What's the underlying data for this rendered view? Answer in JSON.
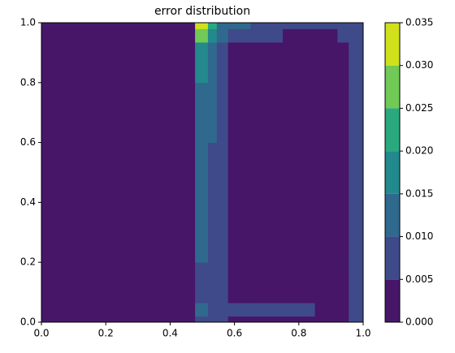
{
  "chart_data": {
    "type": "contour",
    "title": "error distribution",
    "xlim": [
      0,
      1
    ],
    "ylim": [
      0,
      1
    ],
    "xticks": [
      {
        "value": 0,
        "label": "0.0"
      },
      {
        "value": 0.2,
        "label": "0.2"
      },
      {
        "value": 0.4,
        "label": "0.4"
      },
      {
        "value": 0.6,
        "label": "0.6"
      },
      {
        "value": 0.8,
        "label": "0.8"
      },
      {
        "value": 1,
        "label": "1.0"
      }
    ],
    "yticks": [
      {
        "value": 0,
        "label": "0.0"
      },
      {
        "value": 0.2,
        "label": "0.2"
      },
      {
        "value": 0.4,
        "label": "0.4"
      },
      {
        "value": 0.6,
        "label": "0.6"
      },
      {
        "value": 0.8,
        "label": "0.8"
      },
      {
        "value": 1,
        "label": "1.0"
      }
    ],
    "levels": [
      {
        "value": 0,
        "label": "0.000"
      },
      {
        "value": 0.005,
        "label": "0.005"
      },
      {
        "value": 0.01,
        "label": "0.010"
      },
      {
        "value": 0.015,
        "label": "0.015"
      },
      {
        "value": 0.02,
        "label": "0.020"
      },
      {
        "value": 0.025,
        "label": "0.025"
      },
      {
        "value": 0.03,
        "label": "0.030"
      },
      {
        "value": 0.035,
        "label": "0.035"
      }
    ],
    "colors": [
      "#471669",
      "#3f4a8a",
      "#30698e",
      "#22898d",
      "#2aa97f",
      "#71c956",
      "#d0e11c"
    ],
    "x": [
      0.05,
      0.15,
      0.25,
      0.35,
      0.45,
      0.505,
      0.53,
      0.56,
      0.6,
      0.7,
      0.8,
      0.9,
      0.94,
      0.97,
      0.99
    ],
    "y": [
      0.01,
      0.03,
      0.1,
      0.3,
      0.5,
      0.7,
      0.9,
      0.97,
      0.99
    ],
    "z": [
      [
        0.002,
        0.002,
        0.002,
        0.002,
        0.002,
        0.008,
        0.006,
        0.006,
        0.004,
        0.003,
        0.002,
        0.002,
        0.003,
        0.005,
        0.005
      ],
      [
        0.002,
        0.002,
        0.002,
        0.002,
        0.002,
        0.011,
        0.009,
        0.008,
        0.007,
        0.006,
        0.005,
        0.003,
        0.003,
        0.006,
        0.005
      ],
      [
        0.002,
        0.002,
        0.002,
        0.002,
        0.002,
        0.009,
        0.007,
        0.006,
        0.003,
        0.002,
        0.002,
        0.002,
        0.003,
        0.006,
        0.005
      ],
      [
        0.002,
        0.002,
        0.002,
        0.002,
        0.002,
        0.011,
        0.008,
        0.006,
        0.003,
        0.002,
        0.002,
        0.002,
        0.003,
        0.006,
        0.005
      ],
      [
        0.002,
        0.002,
        0.002,
        0.002,
        0.002,
        0.013,
        0.009,
        0.006,
        0.003,
        0.002,
        0.002,
        0.002,
        0.003,
        0.006,
        0.005
      ],
      [
        0.002,
        0.002,
        0.002,
        0.002,
        0.002,
        0.014,
        0.011,
        0.006,
        0.003,
        0.002,
        0.002,
        0.002,
        0.003,
        0.006,
        0.006
      ],
      [
        0.002,
        0.002,
        0.002,
        0.002,
        0.002,
        0.018,
        0.012,
        0.008,
        0.003,
        0.002,
        0.002,
        0.002,
        0.004,
        0.006,
        0.006
      ],
      [
        0.002,
        0.002,
        0.002,
        0.002,
        0.002,
        0.025,
        0.017,
        0.011,
        0.008,
        0.006,
        0.004,
        0.004,
        0.006,
        0.007,
        0.007
      ],
      [
        0.002,
        0.002,
        0.002,
        0.002,
        0.002,
        0.034,
        0.022,
        0.012,
        0.011,
        0.008,
        0.007,
        0.006,
        0.007,
        0.009,
        0.008
      ]
    ]
  }
}
